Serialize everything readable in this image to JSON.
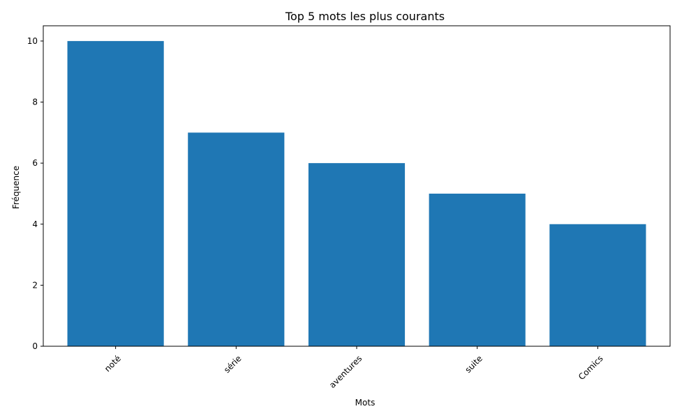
{
  "chart_data": {
    "type": "bar",
    "title": "Top 5 mots les plus courants",
    "xlabel": "Mots",
    "ylabel": "Fréquence",
    "categories": [
      "noté",
      "série",
      "aventures",
      "suite",
      "Comics"
    ],
    "values": [
      10,
      7,
      6,
      5,
      4
    ],
    "ylim": [
      0,
      10.5
    ],
    "yticks": [
      "0",
      "2",
      "4",
      "6",
      "8",
      "10"
    ],
    "bar_color": "#1f77b4",
    "grid": false,
    "x_tick_rotation": "45 degrees"
  }
}
